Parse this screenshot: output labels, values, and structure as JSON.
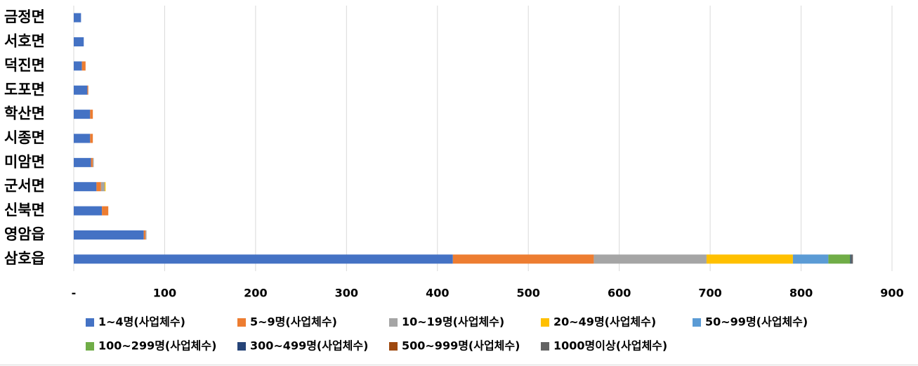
{
  "chart_data": {
    "type": "stacked-barh",
    "categories": [
      "금정면",
      "서호면",
      "덕진면",
      "도포면",
      "학산면",
      "시종면",
      "미암면",
      "군서면",
      "신북면",
      "영암읍",
      "삼호읍"
    ],
    "series": [
      {
        "name": "1~4명(사업체수)",
        "color": "#4472c4",
        "values": [
          8,
          11,
          9,
          15,
          18,
          18,
          19,
          25,
          31,
          77,
          417
        ]
      },
      {
        "name": "5~9명(사업체수)",
        "color": "#ed7d31",
        "values": [
          0,
          0,
          4,
          1,
          3,
          3,
          2,
          5,
          7,
          2,
          155
        ]
      },
      {
        "name": "10~19명(사업체수)",
        "color": "#a5a5a5",
        "values": [
          0,
          0,
          0,
          0,
          0,
          0,
          1,
          4,
          0,
          1,
          124
        ]
      },
      {
        "name": "20~49명(사업체수)",
        "color": "#ffc000",
        "values": [
          0,
          0,
          0,
          0,
          0,
          0,
          0,
          1,
          0,
          0,
          95
        ]
      },
      {
        "name": "50~99명(사업체수)",
        "color": "#5b9bd5",
        "values": [
          0,
          0,
          0,
          0,
          0,
          0,
          0,
          0,
          0,
          0,
          39
        ]
      },
      {
        "name": "100~299명(사업체수)",
        "color": "#70ad47",
        "values": [
          0,
          0,
          0,
          0,
          0,
          0,
          0,
          0,
          0,
          0,
          24
        ]
      },
      {
        "name": "300~499명(사업체수)",
        "color": "#264478",
        "values": [
          0,
          0,
          0,
          0,
          0,
          0,
          0,
          0,
          0,
          0,
          1
        ]
      },
      {
        "name": "500~999명(사업체수)",
        "color": "#9e480e",
        "values": [
          0,
          0,
          0,
          0,
          0,
          0,
          0,
          0,
          0,
          0,
          0
        ]
      },
      {
        "name": "1000명이상(사업체수)",
        "color": "#636363",
        "values": [
          0,
          0,
          0,
          0,
          0,
          0,
          0,
          0,
          0,
          0,
          2
        ]
      }
    ],
    "xlim": [
      0,
      900
    ],
    "xticks": [
      {
        "value": 0,
        "label": "-"
      },
      100,
      200,
      300,
      400,
      500,
      600,
      700,
      800,
      900
    ],
    "grid": true
  }
}
